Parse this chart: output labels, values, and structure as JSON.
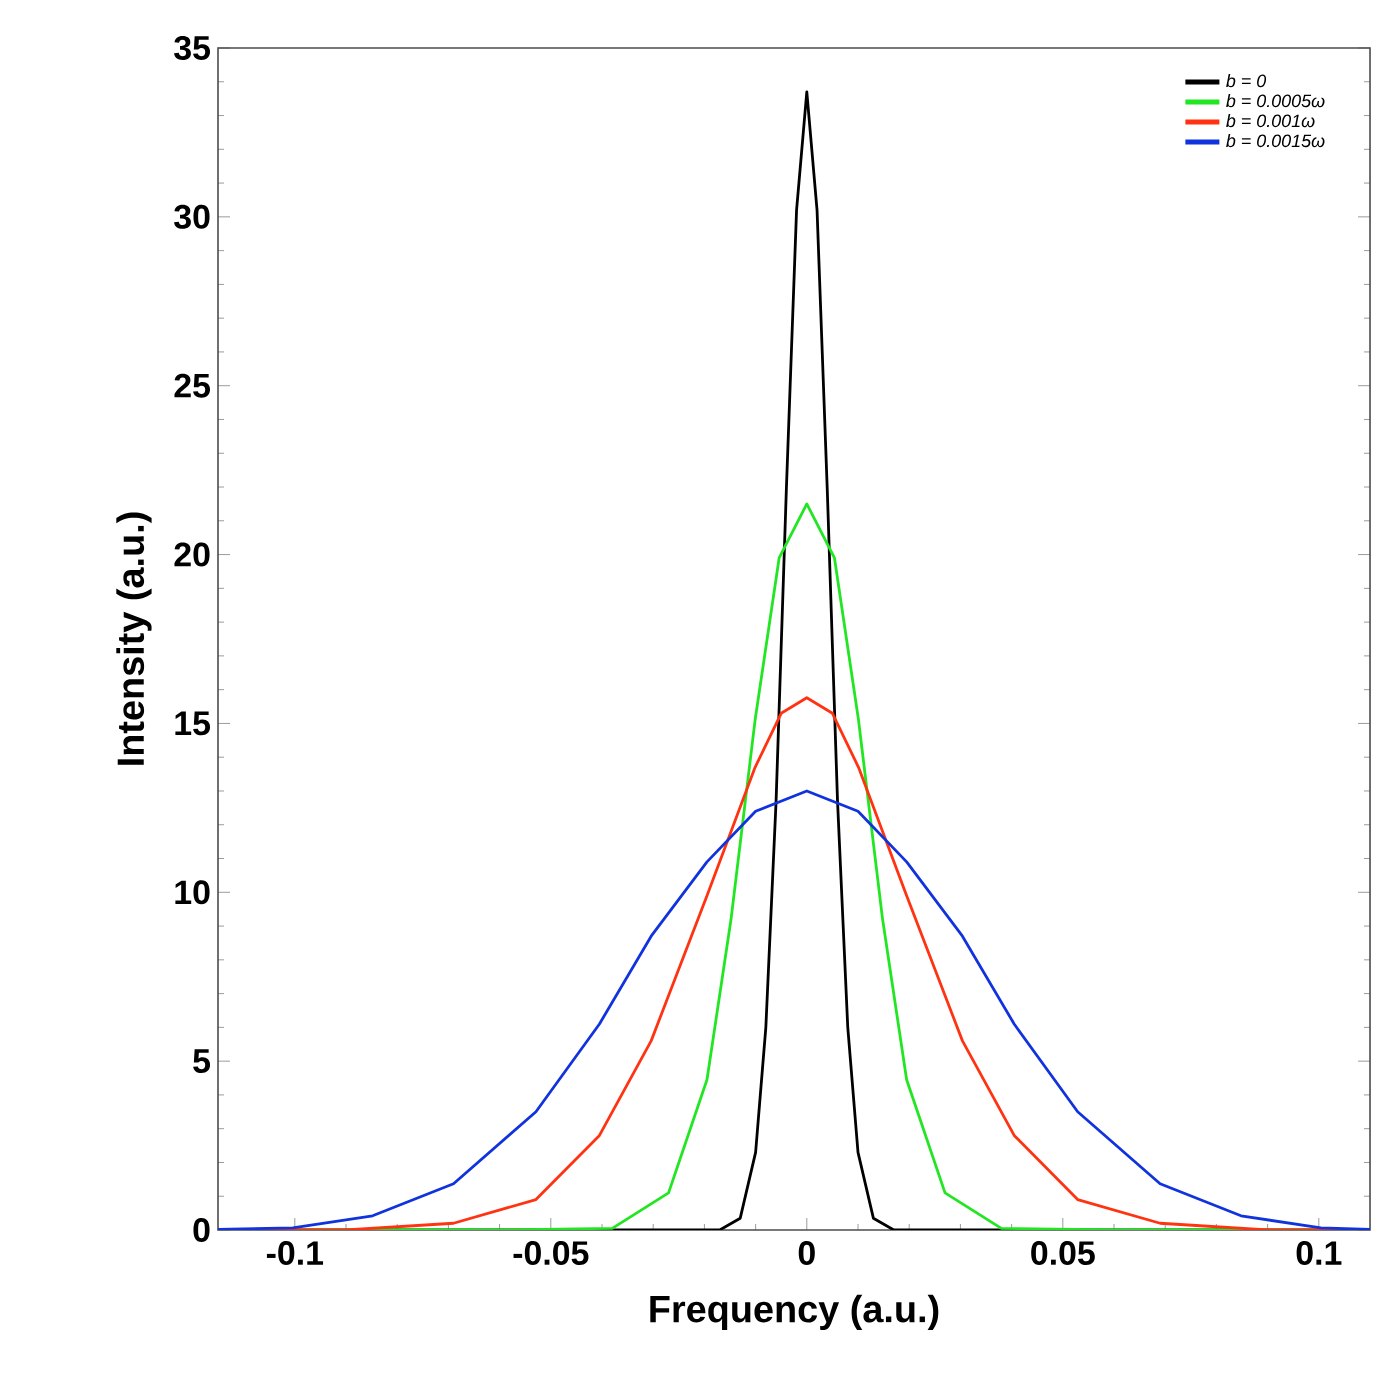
{
  "chart_data": {
    "type": "line",
    "xlabel": "Frequency (a.u.)",
    "ylabel": "Intensity (a.u.)",
    "xlim": [
      -0.115,
      0.11
    ],
    "ylim": [
      0,
      35
    ],
    "xticks": [
      -0.1,
      -0.05,
      0,
      0.05,
      0.1
    ],
    "yticks": [
      0,
      5,
      10,
      15,
      20,
      25,
      30,
      35
    ],
    "grid": false,
    "legend": "top right",
    "marker": "none",
    "line_style": "solid",
    "series": [
      {
        "name": "b = 0",
        "color": "#000000",
        "x": [
          -0.115,
          -0.017,
          -0.013,
          -0.01,
          -0.008,
          -0.006,
          -0.004,
          -0.002,
          0,
          0.002,
          0.004,
          0.006,
          0.008,
          0.01,
          0.013,
          0.017,
          0.11
        ],
        "values": [
          0,
          0,
          0.35,
          2.3,
          6.0,
          12.7,
          21.9,
          30.2,
          33.7,
          30.2,
          21.9,
          12.7,
          6.0,
          2.3,
          0.35,
          0,
          0
        ]
      },
      {
        "name": "b = 0.0005ω",
        "color": "#22e622",
        "x": [
          -0.115,
          -0.06,
          -0.038,
          -0.027,
          -0.0195,
          -0.0148,
          -0.0101,
          -0.0054,
          0,
          0.0054,
          0.0101,
          0.0148,
          0.0195,
          0.027,
          0.038,
          0.06,
          0.11
        ],
        "values": [
          0,
          0,
          0.05,
          1.1,
          4.45,
          9.2,
          15.1,
          19.9,
          21.5,
          19.9,
          15.1,
          9.2,
          4.45,
          1.1,
          0.05,
          0,
          0
        ]
      },
      {
        "name": "b = 0.001ω",
        "color": "#ff3311",
        "x": [
          -0.115,
          -0.09,
          -0.069,
          -0.0529,
          -0.0405,
          -0.0304,
          -0.0195,
          -0.0101,
          -0.005,
          0,
          0.005,
          0.0101,
          0.0195,
          0.0304,
          0.0405,
          0.0529,
          0.069,
          0.09,
          0.11
        ],
        "values": [
          0,
          0,
          0.2,
          0.9,
          2.8,
          5.6,
          9.9,
          13.7,
          15.3,
          15.76,
          15.3,
          13.7,
          9.9,
          5.6,
          2.8,
          0.9,
          0.2,
          0,
          0
        ]
      },
      {
        "name": "b = 0.0015ω",
        "color": "#1133dd",
        "x": [
          -0.115,
          -0.1004,
          -0.0848,
          -0.069,
          -0.0529,
          -0.0405,
          -0.0304,
          -0.0195,
          -0.01,
          0,
          0.01,
          0.0195,
          0.0304,
          0.0405,
          0.0529,
          0.069,
          0.0848,
          0.1004,
          0.11
        ],
        "values": [
          0.02,
          0.06,
          0.42,
          1.37,
          3.5,
          6.1,
          8.7,
          10.9,
          12.4,
          13.0,
          12.4,
          10.9,
          8.7,
          6.1,
          3.5,
          1.37,
          0.42,
          0.06,
          0.02
        ]
      }
    ]
  }
}
